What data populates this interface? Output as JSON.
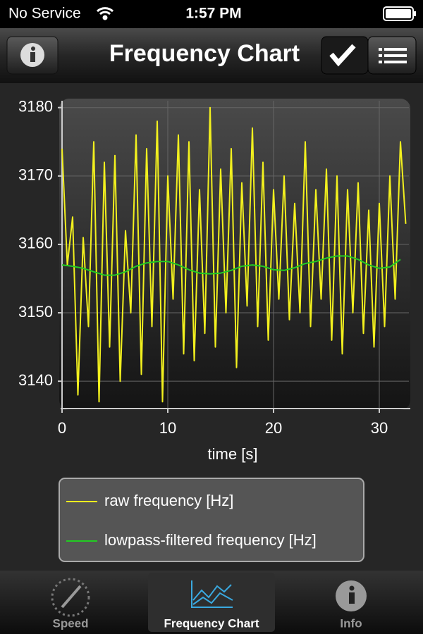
{
  "status_bar": {
    "carrier": "No Service",
    "time": "1:57 PM"
  },
  "nav_bar": {
    "title": "Frequency Chart"
  },
  "chart_data": {
    "type": "line",
    "xlabel": "time [s]",
    "xlim": [
      0,
      32.8
    ],
    "xticks": [
      0,
      10,
      20,
      30
    ],
    "ylim": [
      3136,
      3181
    ],
    "yticks": [
      3140,
      3150,
      3160,
      3170,
      3180
    ],
    "grid": true,
    "series": [
      {
        "name": "raw frequency [Hz]",
        "color": "#f2f01e",
        "x": [
          0,
          0.5,
          1,
          1.5,
          2,
          2.5,
          3,
          3.5,
          4,
          4.5,
          5,
          5.5,
          6,
          6.5,
          7,
          7.5,
          8,
          8.5,
          9,
          9.5,
          10,
          10.5,
          11,
          11.5,
          12,
          12.5,
          13,
          13.5,
          14,
          14.5,
          15,
          15.5,
          16,
          16.5,
          17,
          17.5,
          18,
          18.5,
          19,
          19.5,
          20,
          20.5,
          21,
          21.5,
          22,
          22.5,
          23,
          23.5,
          24,
          24.5,
          25,
          25.5,
          26,
          26.5,
          27,
          27.5,
          28,
          28.5,
          29,
          29.5,
          30,
          30.5,
          31,
          31.5,
          32,
          32.5
        ],
        "values": [
          3174,
          3157,
          3164,
          3138,
          3161,
          3148,
          3175,
          3137,
          3172,
          3145,
          3173,
          3140,
          3162,
          3150,
          3176,
          3141,
          3174,
          3148,
          3178,
          3137,
          3170,
          3152,
          3176,
          3144,
          3175,
          3143,
          3168,
          3147,
          3180,
          3145,
          3171,
          3150,
          3174,
          3142,
          3169,
          3151,
          3177,
          3148,
          3172,
          3146,
          3168,
          3152,
          3170,
          3149,
          3166,
          3150,
          3175,
          3148,
          3168,
          3152,
          3171,
          3146,
          3170,
          3144,
          3168,
          3150,
          3169,
          3147,
          3165,
          3145,
          3166,
          3148,
          3170,
          3152,
          3175,
          3163
        ]
      },
      {
        "name": "lowpass-filtered frequency [Hz]",
        "color": "#22cc22",
        "x": [
          0,
          1,
          2,
          3,
          4,
          5,
          6,
          7,
          8,
          9,
          10,
          11,
          12,
          13,
          14,
          15,
          16,
          17,
          18,
          19,
          20,
          21,
          22,
          23,
          24,
          25,
          26,
          27,
          28,
          29,
          30,
          31,
          32
        ],
        "values": [
          3157,
          3156.8,
          3156.5,
          3156,
          3155.5,
          3155.5,
          3156,
          3156.8,
          3157.3,
          3157.5,
          3157.5,
          3157,
          3156.3,
          3155.8,
          3155.7,
          3155.8,
          3156.2,
          3156.8,
          3157,
          3156.8,
          3156.3,
          3156.2,
          3156.6,
          3157.2,
          3157.5,
          3158,
          3158.3,
          3158.3,
          3157.8,
          3157,
          3156.5,
          3156.7,
          3157.8
        ]
      }
    ]
  },
  "tab_bar": {
    "tabs": [
      "Speed",
      "Frequency Chart",
      "Info"
    ]
  }
}
